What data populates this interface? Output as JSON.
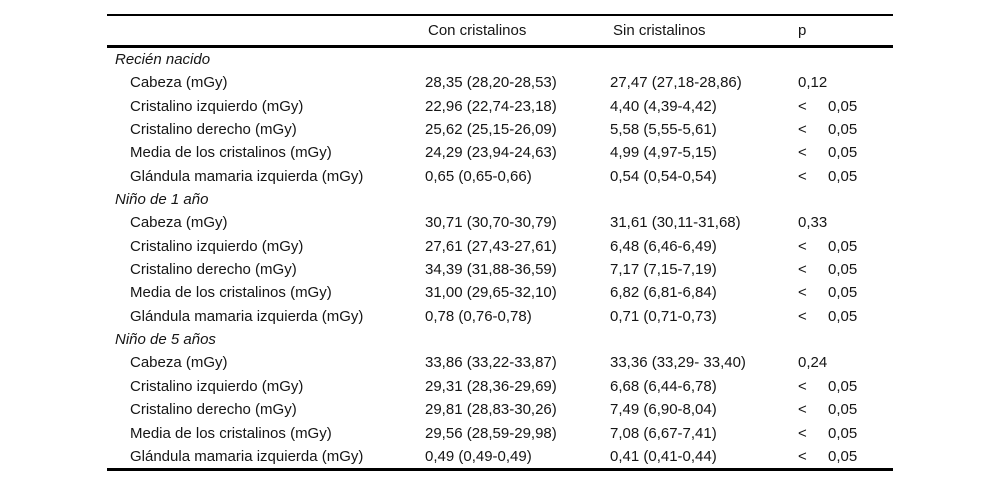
{
  "table": {
    "columns": {
      "con": "Con cristalinos",
      "sin": "Sin cristalinos",
      "p": "p"
    },
    "sections": [
      {
        "title": "Recién nacido",
        "rows": [
          {
            "label": "Cabeza (mGy)",
            "con": "28,35 (28,20-28,53)",
            "sin": "27,47 (27,18-28,86)",
            "p_sign": "",
            "p_value": "0,12"
          },
          {
            "label": "Cristalino izquierdo (mGy)",
            "con": "22,96 (22,74-23,18)",
            "sin": "4,40 (4,39-4,42)",
            "p_sign": "<",
            "p_value": "0,05"
          },
          {
            "label": "Cristalino derecho (mGy)",
            "con": "25,62 (25,15-26,09)",
            "sin": "5,58 (5,55-5,61)",
            "p_sign": "<",
            "p_value": "0,05"
          },
          {
            "label": "Media de los cristalinos (mGy)",
            "con": "24,29 (23,94-24,63)",
            "sin": "4,99 (4,97-5,15)",
            "p_sign": "<",
            "p_value": "0,05"
          },
          {
            "label": "Glándula mamaria izquierda (mGy)",
            "con": "0,65 (0,65-0,66)",
            "sin": "0,54 (0,54-0,54)",
            "p_sign": "<",
            "p_value": "0,05"
          }
        ]
      },
      {
        "title": "Niño de 1 año",
        "rows": [
          {
            "label": "Cabeza (mGy)",
            "con": "30,71 (30,70-30,79)",
            "sin": "31,61 (30,11-31,68)",
            "p_sign": "",
            "p_value": "0,33"
          },
          {
            "label": "Cristalino izquierdo (mGy)",
            "con": "27,61 (27,43-27,61)",
            "sin": "6,48 (6,46-6,49)",
            "p_sign": "<",
            "p_value": "0,05"
          },
          {
            "label": "Cristalino derecho (mGy)",
            "con": "34,39 (31,88-36,59)",
            "sin": "7,17 (7,15-7,19)",
            "p_sign": "<",
            "p_value": "0,05"
          },
          {
            "label": "Media de los cristalinos (mGy)",
            "con": "31,00 (29,65-32,10)",
            "sin": "6,82 (6,81-6,84)",
            "p_sign": "<",
            "p_value": "0,05"
          },
          {
            "label": "Glándula mamaria izquierda (mGy)",
            "con": "0,78 (0,76-0,78)",
            "sin": "0,71 (0,71-0,73)",
            "p_sign": "<",
            "p_value": "0,05"
          }
        ]
      },
      {
        "title": "Niño de 5 años",
        "rows": [
          {
            "label": "Cabeza (mGy)",
            "con": "33,86 (33,22-33,87)",
            "sin": "33,36 (33,29- 33,40)",
            "p_sign": "",
            "p_value": "0,24"
          },
          {
            "label": "Cristalino izquierdo (mGy)",
            "con": "29,31 (28,36-29,69)",
            "sin": "6,68 (6,44-6,78)",
            "p_sign": "<",
            "p_value": "0,05"
          },
          {
            "label": "Cristalino derecho (mGy)",
            "con": "29,81 (28,83-30,26)",
            "sin": "7,49 (6,90-8,04)",
            "p_sign": "<",
            "p_value": "0,05"
          },
          {
            "label": "Media de los cristalinos (mGy)",
            "con": "29,56 (28,59-29,98)",
            "sin": "7,08 (6,67-7,41)",
            "p_sign": "<",
            "p_value": "0,05"
          },
          {
            "label": "Glándula mamaria izquierda (mGy)",
            "con": "0,49 (0,49-0,49)",
            "sin": "0,41 (0,41-0,44)",
            "p_sign": "<",
            "p_value": "0,05"
          }
        ]
      }
    ]
  }
}
